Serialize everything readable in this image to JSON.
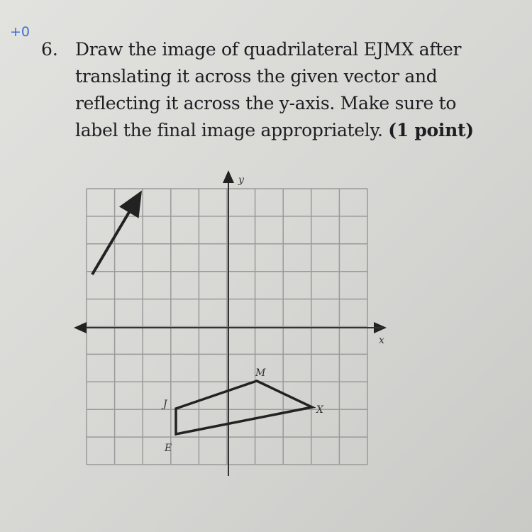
{
  "score": "+0",
  "question": {
    "number": "6.",
    "lines": [
      "Draw the image of quadrilateral EJMX after",
      "translating it across the given vector and",
      "reflecting it across the y-axis. Make sure to",
      "label the final image appropriately."
    ],
    "points": "(1 point)"
  },
  "graph": {
    "y_axis_label": "y",
    "x_axis_label": "x",
    "vertex_labels": {
      "J": "J",
      "M": "M",
      "X": "X",
      "E": "E"
    }
  }
}
